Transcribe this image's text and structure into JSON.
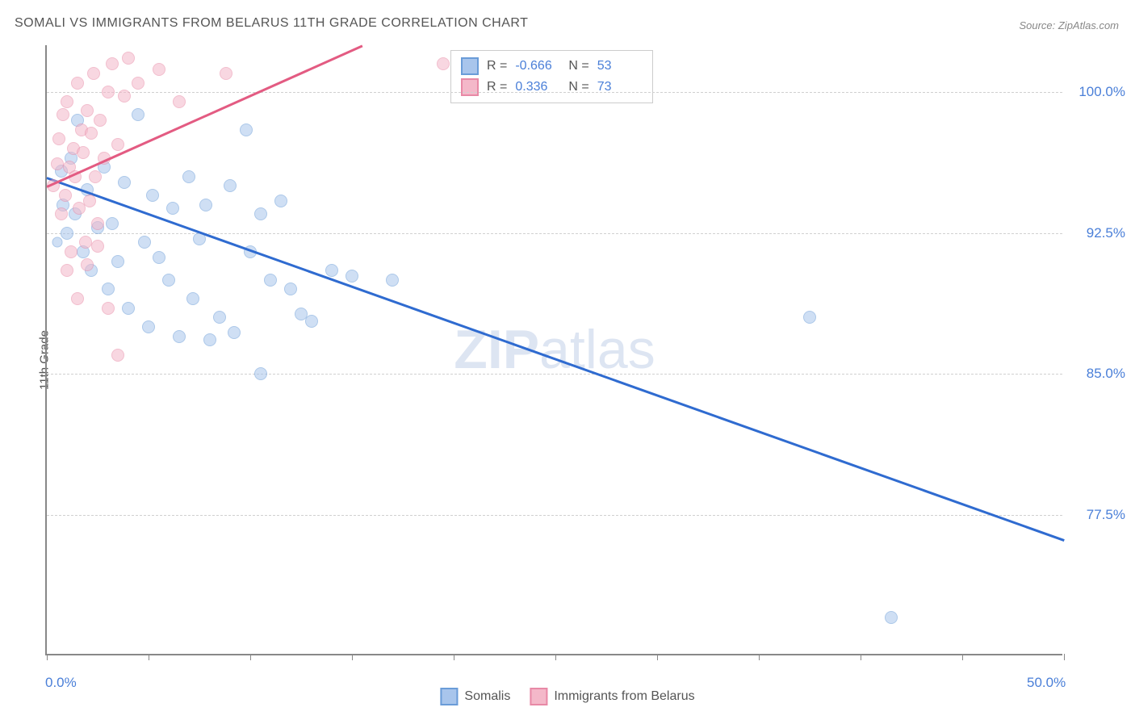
{
  "title": "SOMALI VS IMMIGRANTS FROM BELARUS 11TH GRADE CORRELATION CHART",
  "source": "Source: ZipAtlas.com",
  "y_axis_title": "11th Grade",
  "watermark_bold": "ZIP",
  "watermark_rest": "atlas",
  "chart": {
    "type": "scatter",
    "xlim": [
      0,
      50
    ],
    "ylim": [
      70,
      102.5
    ],
    "x_ticks": [
      0,
      5,
      10,
      15,
      20,
      25,
      30,
      35,
      40,
      45,
      50
    ],
    "x_tick_labels": {
      "0": "0.0%",
      "50": "50.0%"
    },
    "y_ticks": [
      77.5,
      85.0,
      92.5,
      100.0
    ],
    "y_tick_labels": [
      "77.5%",
      "85.0%",
      "92.5%",
      "100.0%"
    ],
    "grid_color": "#d0d0d0",
    "background_color": "#ffffff",
    "series": [
      {
        "name": "Somalis",
        "color_fill": "#a8c5ec",
        "color_stroke": "#6a9cd8",
        "marker_size": 16,
        "R": "-0.666",
        "N": "53",
        "trend": {
          "x1": 0,
          "y1": 95.5,
          "x2": 50,
          "y2": 76.2,
          "color": "#2f6bd0"
        },
        "points": [
          {
            "x": 0.5,
            "y": 92.0,
            "r": 13
          },
          {
            "x": 0.7,
            "y": 95.8
          },
          {
            "x": 0.8,
            "y": 94.0
          },
          {
            "x": 1.0,
            "y": 92.5
          },
          {
            "x": 1.2,
            "y": 96.5
          },
          {
            "x": 1.4,
            "y": 93.5
          },
          {
            "x": 1.5,
            "y": 98.5
          },
          {
            "x": 1.8,
            "y": 91.5
          },
          {
            "x": 2.0,
            "y": 94.8
          },
          {
            "x": 2.2,
            "y": 90.5
          },
          {
            "x": 2.5,
            "y": 92.8
          },
          {
            "x": 2.8,
            "y": 96.0
          },
          {
            "x": 3.0,
            "y": 89.5
          },
          {
            "x": 3.2,
            "y": 93.0
          },
          {
            "x": 3.5,
            "y": 91.0
          },
          {
            "x": 3.8,
            "y": 95.2
          },
          {
            "x": 4.0,
            "y": 88.5
          },
          {
            "x": 4.5,
            "y": 98.8
          },
          {
            "x": 4.8,
            "y": 92.0
          },
          {
            "x": 5.0,
            "y": 87.5
          },
          {
            "x": 5.2,
            "y": 94.5
          },
          {
            "x": 5.5,
            "y": 91.2
          },
          {
            "x": 6.0,
            "y": 90.0
          },
          {
            "x": 6.2,
            "y": 93.8
          },
          {
            "x": 6.5,
            "y": 87.0
          },
          {
            "x": 7.0,
            "y": 95.5
          },
          {
            "x": 7.2,
            "y": 89.0
          },
          {
            "x": 7.5,
            "y": 92.2
          },
          {
            "x": 7.8,
            "y": 94.0
          },
          {
            "x": 8.0,
            "y": 86.8
          },
          {
            "x": 8.5,
            "y": 88.0
          },
          {
            "x": 9.0,
            "y": 95.0
          },
          {
            "x": 9.2,
            "y": 87.2
          },
          {
            "x": 9.8,
            "y": 98.0
          },
          {
            "x": 10.0,
            "y": 91.5
          },
          {
            "x": 10.5,
            "y": 93.5
          },
          {
            "x": 11.0,
            "y": 90.0
          },
          {
            "x": 11.5,
            "y": 94.2
          },
          {
            "x": 12.0,
            "y": 89.5
          },
          {
            "x": 12.5,
            "y": 88.2
          },
          {
            "x": 13.0,
            "y": 87.8
          },
          {
            "x": 14.0,
            "y": 90.5
          },
          {
            "x": 15.0,
            "y": 90.2
          },
          {
            "x": 17.0,
            "y": 90.0
          },
          {
            "x": 10.5,
            "y": 85.0
          },
          {
            "x": 37.5,
            "y": 88.0
          },
          {
            "x": 41.5,
            "y": 72.0
          }
        ]
      },
      {
        "name": "Immigrants from Belarus",
        "color_fill": "#f4b8c9",
        "color_stroke": "#e889a6",
        "marker_size": 16,
        "R": "0.336",
        "N": "73",
        "trend": {
          "x1": 0,
          "y1": 95.0,
          "x2": 15.5,
          "y2": 102.5,
          "color": "#e35b82"
        },
        "points": [
          {
            "x": 0.3,
            "y": 95.0
          },
          {
            "x": 0.5,
            "y": 96.2
          },
          {
            "x": 0.6,
            "y": 97.5
          },
          {
            "x": 0.7,
            "y": 93.5
          },
          {
            "x": 0.8,
            "y": 98.8
          },
          {
            "x": 0.9,
            "y": 94.5
          },
          {
            "x": 1.0,
            "y": 99.5
          },
          {
            "x": 1.1,
            "y": 96.0
          },
          {
            "x": 1.2,
            "y": 91.5
          },
          {
            "x": 1.3,
            "y": 97.0
          },
          {
            "x": 1.4,
            "y": 95.5
          },
          {
            "x": 1.5,
            "y": 100.5
          },
          {
            "x": 1.6,
            "y": 93.8
          },
          {
            "x": 1.7,
            "y": 98.0
          },
          {
            "x": 1.8,
            "y": 96.8
          },
          {
            "x": 1.9,
            "y": 92.0
          },
          {
            "x": 2.0,
            "y": 99.0
          },
          {
            "x": 2.1,
            "y": 94.2
          },
          {
            "x": 2.2,
            "y": 97.8
          },
          {
            "x": 2.3,
            "y": 101.0
          },
          {
            "x": 2.4,
            "y": 95.5
          },
          {
            "x": 2.5,
            "y": 93.0
          },
          {
            "x": 2.6,
            "y": 98.5
          },
          {
            "x": 2.8,
            "y": 96.5
          },
          {
            "x": 3.0,
            "y": 100.0
          },
          {
            "x": 3.2,
            "y": 101.5
          },
          {
            "x": 3.5,
            "y": 97.2
          },
          {
            "x": 3.8,
            "y": 99.8
          },
          {
            "x": 4.0,
            "y": 101.8
          },
          {
            "x": 4.5,
            "y": 100.5
          },
          {
            "x": 5.5,
            "y": 101.2
          },
          {
            "x": 6.5,
            "y": 99.5
          },
          {
            "x": 8.8,
            "y": 101.0
          },
          {
            "x": 1.0,
            "y": 90.5
          },
          {
            "x": 1.5,
            "y": 89.0
          },
          {
            "x": 2.0,
            "y": 90.8
          },
          {
            "x": 2.5,
            "y": 91.8
          },
          {
            "x": 3.0,
            "y": 88.5
          },
          {
            "x": 3.5,
            "y": 86.0
          },
          {
            "x": 19.5,
            "y": 101.5
          }
        ]
      }
    ]
  },
  "legend_stats_prefix_R": "R =",
  "legend_stats_prefix_N": "N =",
  "bottom_legend": [
    "Somalis",
    "Immigrants from Belarus"
  ]
}
